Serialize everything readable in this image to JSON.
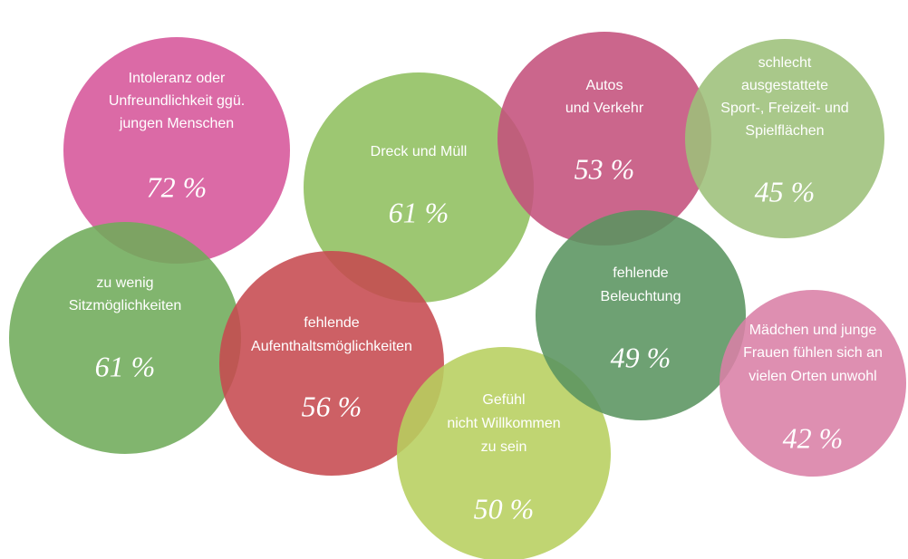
{
  "items": [
    {
      "lines": [
        "Intoleranz oder",
        "Unfreundlichkeit ggü.",
        "jungen Menschen"
      ],
      "value": "72 %"
    },
    {
      "lines": [
        "Dreck und Müll"
      ],
      "value": "61 %"
    },
    {
      "lines": [
        "Autos",
        "und Verkehr"
      ],
      "value": "53 %"
    },
    {
      "lines": [
        "schlecht",
        "ausgestattete",
        "Sport-, Freizeit- und",
        "Spielflächen"
      ],
      "value": "45 %"
    },
    {
      "lines": [
        "zu wenig",
        "Sitzmöglichkeiten"
      ],
      "value": "61 %"
    },
    {
      "lines": [
        "fehlende",
        "Aufenthaltsmöglichkeiten"
      ],
      "value": "56 %"
    },
    {
      "lines": [
        "Gefühl",
        "nicht Willkommen",
        "zu sein"
      ],
      "value": "50 %"
    },
    {
      "lines": [
        "fehlende",
        "Beleuchtung"
      ],
      "value": "49 %"
    },
    {
      "lines": [
        "Mädchen und junge",
        "Frauen fühlen sich an",
        "vielen Orten unwohl"
      ],
      "value": "42 %"
    }
  ]
}
